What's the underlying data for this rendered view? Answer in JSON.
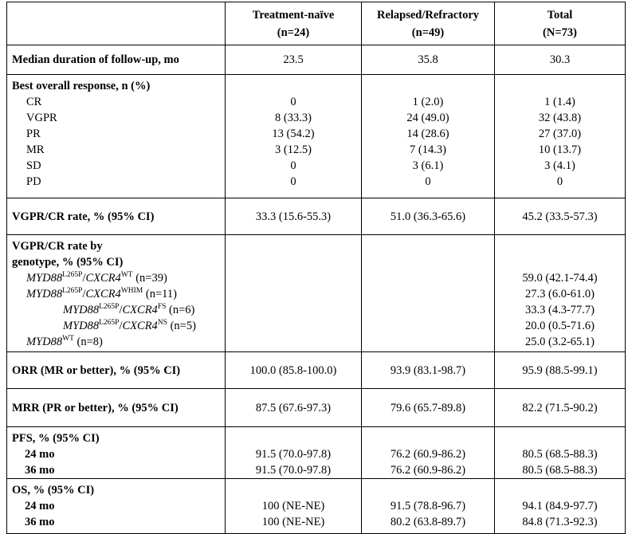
{
  "table": {
    "columns": [
      {
        "title": "Treatment-naïve",
        "n": "(n=24)"
      },
      {
        "title": "Relapsed/Refractory",
        "n": "(n=49)"
      },
      {
        "title": "Total",
        "n": "(N=73)"
      }
    ],
    "sections": [
      {
        "label": "Median duration of follow-up, mo",
        "values": [
          "23.5",
          "35.8",
          "30.3"
        ]
      },
      {
        "label": "Best overall response, n (%)",
        "rows": [
          {
            "label": "CR",
            "values": [
              "0",
              "1 (2.0)",
              "1 (1.4)"
            ]
          },
          {
            "label": "VGPR",
            "values": [
              "8 (33.3)",
              "24 (49.0)",
              "32 (43.8)"
            ]
          },
          {
            "label": "PR",
            "values": [
              "13 (54.2)",
              "14 (28.6)",
              "27 (37.0)"
            ]
          },
          {
            "label": "MR",
            "values": [
              "3 (12.5)",
              "7 (14.3)",
              "10 (13.7)"
            ]
          },
          {
            "label": "SD",
            "values": [
              "0",
              "3 (6.1)",
              "3 (4.1)"
            ]
          },
          {
            "label": "PD",
            "values": [
              "0",
              "0",
              "0"
            ]
          }
        ]
      },
      {
        "label": "VGPR/CR rate, % (95% CI)",
        "values": [
          "33.3 (15.6-55.3)",
          "51.0 (36.3-65.6)",
          "45.2 (33.5-57.3)"
        ]
      },
      {
        "label": [
          "VGPR/CR rate by",
          "genotype, % (95% CI)"
        ],
        "rows": [
          {
            "label": [
              {
                "text": "MYD88",
                "style": "italic"
              },
              {
                "text": "L265P",
                "style": "sup"
              },
              {
                "text": "/",
                "style": "plain"
              },
              {
                "text": "CXCR4",
                "style": "italic"
              },
              {
                "text": "WT",
                "style": "sup"
              },
              {
                "text": " (n=39)",
                "style": "plain"
              }
            ],
            "values": [
              null,
              null,
              "59.0 (42.1-74.4)"
            ]
          },
          {
            "label": [
              {
                "text": "MYD88",
                "style": "italic"
              },
              {
                "text": "L265P",
                "style": "sup"
              },
              {
                "text": "/",
                "style": "plain"
              },
              {
                "text": "CXCR4",
                "style": "italic"
              },
              {
                "text": "WHIM",
                "style": "sup"
              },
              {
                "text": " (n=11)",
                "style": "plain"
              }
            ],
            "values": [
              null,
              null,
              "27.3 (6.0-61.0)"
            ]
          },
          {
            "label": [
              {
                "text": "MYD88",
                "style": "italic"
              },
              {
                "text": "L265P",
                "style": "sup"
              },
              {
                "text": "/",
                "style": "plain"
              },
              {
                "text": "CXCR4",
                "style": "italic"
              },
              {
                "text": "FS",
                "style": "sup"
              },
              {
                "text": " (n=6)",
                "style": "plain"
              }
            ],
            "values": [
              null,
              null,
              "33.3 (4.3-77.7)"
            ]
          },
          {
            "label": [
              {
                "text": "MYD88",
                "style": "italic"
              },
              {
                "text": "L265P",
                "style": "sup"
              },
              {
                "text": "/",
                "style": "plain"
              },
              {
                "text": "CXCR4",
                "style": "italic"
              },
              {
                "text": "NS",
                "style": "sup"
              },
              {
                "text": " (n=5)",
                "style": "plain"
              }
            ],
            "values": [
              null,
              null,
              "20.0 (0.5-71.6)"
            ]
          },
          {
            "label": [
              {
                "text": "MYD88",
                "style": "italic"
              },
              {
                "text": "WT",
                "style": "sup"
              },
              {
                "text": " (n=8)",
                "style": "plain"
              }
            ],
            "values": [
              null,
              null,
              "25.0 (3.2-65.1)"
            ]
          }
        ]
      },
      {
        "label": "ORR (MR or better), % (95% CI)",
        "values": [
          "100.0 (85.8-100.0)",
          "93.9 (83.1-98.7)",
          "95.9 (88.5-99.1)"
        ]
      },
      {
        "label": "MRR (PR or better), % (95% CI)",
        "values": [
          "87.5 (67.6-97.3)",
          "79.6 (65.7-89.8)",
          "82.2 (71.5-90.2)"
        ]
      },
      {
        "label": "PFS, % (95% CI)",
        "bold_rows": true,
        "rows": [
          {
            "label": "24 mo",
            "values": [
              "91.5 (70.0-97.8)",
              "76.2 (60.9-86.2)",
              "80.5 (68.5-88.3)"
            ]
          },
          {
            "label": "36 mo",
            "values": [
              "91.5 (70.0-97.8)",
              "76.2 (60.9-86.2)",
              "80.5 (68.5-88.3)"
            ]
          }
        ]
      },
      {
        "label": "OS, % (95% CI)",
        "bold_rows": true,
        "rows": [
          {
            "label": "24 mo",
            "values": [
              "100 (NE-NE)",
              "91.5 (78.8-96.7)",
              "94.1 (84.9-97.7)"
            ]
          },
          {
            "label": "36 mo",
            "values": [
              "100 (NE-NE)",
              "80.2 (63.8-89.7)",
              "84.8 (71.3-92.3)"
            ]
          }
        ]
      }
    ]
  }
}
